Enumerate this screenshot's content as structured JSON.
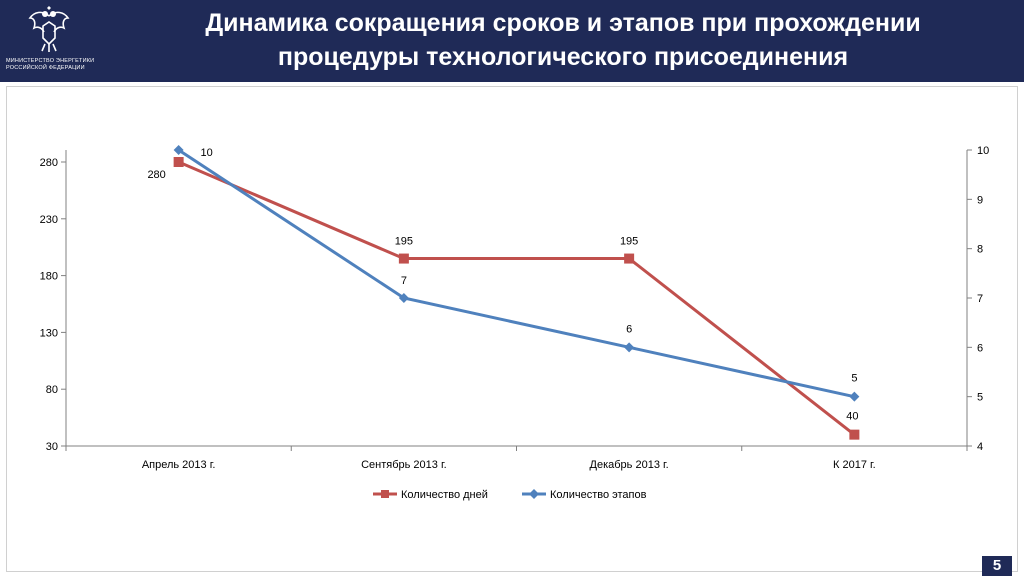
{
  "header": {
    "title_line1": "Динамика сокращения сроков и этапов при прохождении",
    "title_line2": "процедуры технологического присоединения",
    "logo_line1": "МИНИСТЕРСТВО ЭНЕРГЕТИКИ",
    "logo_line2": "РОССИЙСКОЙ ФЕДЕРАЦИИ",
    "logo_icon": "double-headed-eagle-emblem"
  },
  "page_number": "5",
  "colors": {
    "header_bg": "#1f2a57",
    "days_series": "#c0504d",
    "stages_series": "#4f81bd"
  },
  "chart_data": {
    "type": "line",
    "categories": [
      "Апрель 2013 г.",
      "Сентябрь 2013 г.",
      "Декабрь 2013 г.",
      "К 2017 г."
    ],
    "series": [
      {
        "name": "Количество дней",
        "axis": "left",
        "marker": "square",
        "values": [
          280,
          195,
          195,
          40
        ],
        "labels": [
          "280",
          "195",
          "195",
          "40"
        ]
      },
      {
        "name": "Количество этапов",
        "axis": "right",
        "marker": "diamond",
        "values": [
          10,
          7,
          6,
          5
        ],
        "labels": [
          "10",
          "7",
          "6",
          "5"
        ]
      }
    ],
    "y_left": {
      "min": 30,
      "max": 280,
      "ticks": [
        "280",
        "230",
        "180",
        "130",
        "80",
        "30"
      ]
    },
    "y_right": {
      "min": 4,
      "max": 10,
      "ticks": [
        "10",
        "9",
        "8",
        "7",
        "6",
        "5",
        "4"
      ]
    },
    "grid": false,
    "legend_position": "bottom"
  }
}
